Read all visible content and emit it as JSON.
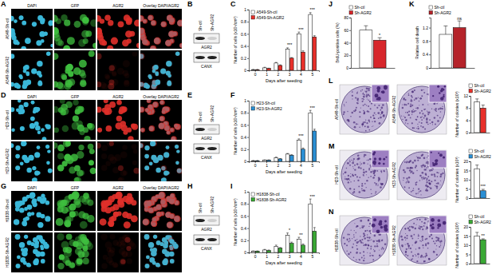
{
  "figure": {
    "image_panels": [
      {
        "label": "A",
        "channels": [
          "DAPI",
          "GFP",
          "AGR2",
          "Overlay DAPI/AGR2"
        ],
        "rows": [
          "A549-Sh-ctl",
          "A549-Sh-AGR2"
        ]
      },
      {
        "label": "D",
        "channels": [
          "DAPI",
          "GFP",
          "AGR2",
          "Overlay DAPI/AGR2"
        ],
        "rows": [
          "H23-Sh-ctl",
          "H23-Sh-AGR2"
        ]
      },
      {
        "label": "G",
        "channels": [
          "DAPI",
          "GFP",
          "AGR2",
          "Overlay DAPI/AGR2"
        ],
        "rows": [
          "H1838-Sh-ctl",
          "H1838-Sh-AGR2"
        ]
      }
    ],
    "blots": [
      {
        "label": "B",
        "lanes": [
          "Sh-ctl",
          "Sh-AGR2"
        ],
        "bands": [
          "AGR2",
          "CANX"
        ]
      },
      {
        "label": "E",
        "lanes": [
          "Sh-ctl",
          "Sh-AGR2"
        ],
        "bands": [
          "AGR2",
          "CANX"
        ]
      },
      {
        "label": "H",
        "lanes": [
          "Sh-ctl",
          "Sh-AGR2"
        ],
        "bands": [
          "AGR2",
          "CANX"
        ]
      }
    ],
    "colony_panels": [
      {
        "label": "L",
        "dishes": [
          "A549-Sh-ctl",
          "A549-Sh-AGR2"
        ]
      },
      {
        "label": "M",
        "dishes": [
          "H23-Sh-ctl",
          "H23-Sh-AGR2"
        ]
      },
      {
        "label": "N",
        "dishes": [
          "H1838-Sh-ctl",
          "H1838-Sh-AGR2"
        ]
      }
    ]
  },
  "chart_data": [
    {
      "type": "bar",
      "title": "C",
      "x_label": "Days after seeding",
      "y_label": "Number of cells (x10⁵/cm²)",
      "categories": [
        0,
        1,
        2,
        3,
        4,
        5
      ],
      "ylim": [
        0,
        1
      ],
      "yticks": [
        0,
        0.2,
        0.4,
        0.6,
        0.8,
        1
      ],
      "legend": "upper left",
      "series": [
        {
          "name": "A549-Sh-ctl",
          "color": "#ffffff",
          "values": [
            0.01,
            0.04,
            0.12,
            0.35,
            0.6,
            0.92
          ],
          "errors": [
            0.005,
            0.01,
            0.01,
            0.02,
            0.03,
            0.03
          ]
        },
        {
          "name": "A549-Sh-AGR2",
          "color": "#e8302a",
          "values": [
            0.01,
            0.03,
            0.08,
            0.2,
            0.3,
            0.55
          ],
          "errors": [
            0.005,
            0.005,
            0.01,
            0.01,
            0.02,
            0.02
          ]
        }
      ],
      "annotations": [
        {
          "category": 3,
          "text": "***"
        },
        {
          "category": 4,
          "text": "***"
        },
        {
          "category": 5,
          "text": "***"
        }
      ]
    },
    {
      "type": "bar",
      "title": "F",
      "x_label": "Days after seeding",
      "y_label": "Number of cells (x10⁵/cm²)",
      "categories": [
        0,
        1,
        2,
        3,
        4,
        5
      ],
      "ylim": [
        0,
        1
      ],
      "yticks": [
        0,
        0.2,
        0.4,
        0.6,
        0.8,
        1
      ],
      "legend": "upper left",
      "series": [
        {
          "name": "H23-Sh-ctl",
          "color": "#ffffff",
          "values": [
            0.01,
            0.02,
            0.06,
            0.12,
            0.35,
            0.8
          ],
          "errors": [
            0.005,
            0.005,
            0.01,
            0.01,
            0.02,
            0.04
          ]
        },
        {
          "name": "H23-Sh-AGR2",
          "color": "#2a8fd4",
          "values": [
            0.01,
            0.02,
            0.04,
            0.1,
            0.2,
            0.5
          ],
          "errors": [
            0.005,
            0.005,
            0.005,
            0.01,
            0.02,
            0.03
          ]
        }
      ],
      "annotations": [
        {
          "category": 4,
          "text": "***"
        },
        {
          "category": 5,
          "text": "***"
        }
      ]
    },
    {
      "type": "bar",
      "title": "I",
      "x_label": "Days after seeding",
      "y_label": "Number of cells (x10⁵/cm²)",
      "categories": [
        0,
        1,
        2,
        3,
        4,
        5
      ],
      "ylim": [
        0,
        1
      ],
      "yticks": [
        0,
        0.2,
        0.4,
        0.6,
        0.8,
        1
      ],
      "legend": "upper left",
      "series": [
        {
          "name": "H1838-Sh-ctl",
          "color": "#ffffff",
          "values": [
            0.02,
            0.04,
            0.1,
            0.28,
            0.22,
            0.8
          ],
          "errors": [
            0.005,
            0.01,
            0.02,
            0.04,
            0.03,
            0.08
          ]
        },
        {
          "name": "H1838-Sh-AGR2",
          "color": "#3aa935",
          "values": [
            0.02,
            0.03,
            0.07,
            0.15,
            0.12,
            0.35
          ],
          "errors": [
            0.005,
            0.01,
            0.01,
            0.02,
            0.02,
            0.06
          ]
        }
      ],
      "annotations": [
        {
          "category": 3,
          "text": "*"
        },
        {
          "category": 4,
          "text": "**"
        },
        {
          "category": 5,
          "text": "***"
        }
      ]
    },
    {
      "type": "bar",
      "title": "J",
      "y_label": "BrdU-positive cells (%)",
      "categories": [
        null
      ],
      "ylim": [
        0,
        80
      ],
      "yticks": [
        0,
        20,
        40,
        60,
        80
      ],
      "legend": "top",
      "tick_labels": "y",
      "series": [
        {
          "name": "Sh-ctl",
          "color": "#ffffff",
          "values": [
            60
          ],
          "errors": [
            7
          ]
        },
        {
          "name": "Sh-AGR2",
          "color": "#d7262b",
          "values": [
            44
          ],
          "errors": [
            4
          ]
        }
      ],
      "annotations": [
        {
          "category": 0,
          "series": 1,
          "text": "*"
        }
      ]
    },
    {
      "type": "bar",
      "title": "K",
      "y_label": "Relative cell death",
      "categories": [
        null
      ],
      "ylim": [
        0,
        1.5
      ],
      "yticks": [
        0,
        0.4,
        0.8,
        1.2
      ],
      "legend": "top",
      "tick_labels": "y",
      "series": [
        {
          "name": "Sh-ctl",
          "color": "#ffffff",
          "values": [
            1.0
          ],
          "errors": [
            0.25
          ]
        },
        {
          "name": "Sh-AGR2",
          "color": "#b5232a",
          "values": [
            1.2
          ],
          "errors": [
            0.2
          ]
        }
      ],
      "annotations": [
        {
          "category": 0,
          "series": 1,
          "text": "ns"
        }
      ]
    },
    {
      "type": "bar",
      "y_label": "Number of colonies (x10³)",
      "categories": [
        null
      ],
      "ylim": [
        0,
        12
      ],
      "yticks": [
        0,
        4,
        8,
        12
      ],
      "legend": "top",
      "tick_labels": "y",
      "series": [
        {
          "name": "Sh-ctl",
          "color": "#ffffff",
          "values": [
            10
          ],
          "errors": [
            1
          ]
        },
        {
          "name": "Sh-AGR2",
          "color": "#e8302a",
          "values": [
            8
          ],
          "errors": [
            1
          ]
        }
      ]
    },
    {
      "type": "bar",
      "y_label": "Number of colonies (x10³)",
      "categories": [
        null
      ],
      "ylim": [
        0,
        20
      ],
      "yticks": [
        0,
        5,
        10,
        15,
        20
      ],
      "legend": "top",
      "tick_labels": "y",
      "series": [
        {
          "name": "Sh-ctl",
          "color": "#ffffff",
          "values": [
            16
          ],
          "errors": [
            2
          ]
        },
        {
          "name": "Sh-AGR2",
          "color": "#2a8fd4",
          "values": [
            4
          ],
          "errors": [
            0.8
          ]
        }
      ],
      "annotations": [
        {
          "category": 0,
          "series": 1,
          "text": "***"
        }
      ]
    },
    {
      "type": "bar",
      "y_label": "Number of colonies (x10³)",
      "categories": [
        null
      ],
      "ylim": [
        0,
        20
      ],
      "yticks": [
        0,
        5,
        10,
        15,
        20
      ],
      "legend": "top",
      "tick_labels": "y",
      "series": [
        {
          "name": "Sh-ctl",
          "color": "#ffffff",
          "values": [
            15
          ],
          "errors": [
            2
          ]
        },
        {
          "name": "Sh-AGR2",
          "color": "#3aa935",
          "values": [
            13
          ],
          "errors": [
            0.5
          ]
        }
      ],
      "annotations": [
        {
          "category": 0,
          "series": 1,
          "text": "**"
        }
      ]
    }
  ]
}
